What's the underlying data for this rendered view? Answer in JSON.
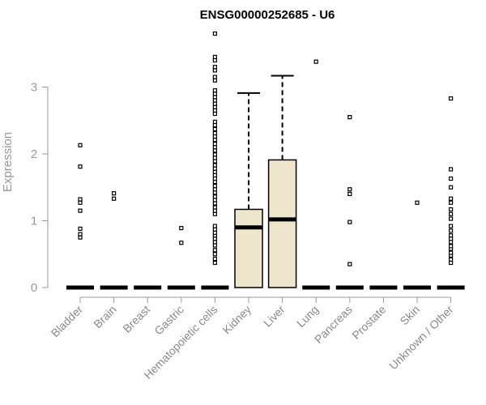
{
  "chart_data": {
    "type": "box",
    "title": "ENSG00000252685 - U6",
    "ylabel": "Expression",
    "xlabel": "",
    "ylim": [
      0,
      3.9
    ],
    "yticks": [
      0,
      1,
      2,
      3
    ],
    "grid": false,
    "legend": "none",
    "box_fill": "#ede6cc",
    "categories": [
      "Bladder",
      "Brain",
      "Breast",
      "Gastric",
      "Hematopoietic cells",
      "Kidney",
      "Liver",
      "Lung",
      "Pancreas",
      "Prostate",
      "Skin",
      "Unknown / Other"
    ],
    "boxes": [
      {
        "category": "Bladder",
        "q1": 0,
        "median": 0,
        "q3": 0,
        "whisker_high": 0,
        "outliers": [
          0.75,
          0.8,
          0.88,
          1.15,
          1.27,
          1.32,
          1.81,
          2.13
        ]
      },
      {
        "category": "Brain",
        "q1": 0,
        "median": 0,
        "q3": 0,
        "whisker_high": 0,
        "outliers": [
          1.33,
          1.41
        ]
      },
      {
        "category": "Breast",
        "q1": 0,
        "median": 0,
        "q3": 0,
        "whisker_high": 0,
        "outliers": []
      },
      {
        "category": "Gastric",
        "q1": 0,
        "median": 0,
        "q3": 0,
        "whisker_high": 0,
        "outliers": [
          0.67,
          0.89
        ]
      },
      {
        "category": "Hematopoietic cells",
        "q1": 0,
        "median": 0,
        "q3": 0,
        "whisker_high": 0,
        "outliers": [
          0.37,
          0.43,
          0.5,
          0.56,
          0.63,
          0.68,
          0.73,
          0.78,
          0.82,
          0.87,
          0.92,
          1.1,
          1.15,
          1.2,
          1.26,
          1.31,
          1.36,
          1.42,
          1.47,
          1.52,
          1.58,
          1.63,
          1.68,
          1.73,
          1.78,
          1.83,
          1.89,
          1.94,
          1.99,
          2.05,
          2.1,
          2.15,
          2.21,
          2.26,
          2.31,
          2.37,
          2.43,
          2.48,
          2.6,
          2.65,
          2.7,
          2.75,
          2.8,
          2.85,
          2.9,
          2.95,
          3.1,
          3.15,
          3.25,
          3.3,
          3.4,
          3.45,
          3.8
        ]
      },
      {
        "category": "Kidney",
        "q1": 0,
        "median": 0.9,
        "q3": 1.17,
        "whisker_high": 2.91,
        "outliers": []
      },
      {
        "category": "Liver",
        "q1": 0,
        "median": 1.02,
        "q3": 1.91,
        "whisker_high": 3.17,
        "outliers": []
      },
      {
        "category": "Lung",
        "q1": 0,
        "median": 0,
        "q3": 0,
        "whisker_high": 0,
        "outliers": [
          3.38
        ]
      },
      {
        "category": "Pancreas",
        "q1": 0,
        "median": 0,
        "q3": 0,
        "whisker_high": 0,
        "outliers": [
          0.35,
          0.98,
          1.4,
          1.47,
          2.55
        ]
      },
      {
        "category": "Prostate",
        "q1": 0,
        "median": 0,
        "q3": 0,
        "whisker_high": 0,
        "outliers": []
      },
      {
        "category": "Skin",
        "q1": 0,
        "median": 0,
        "q3": 0,
        "whisker_high": 0,
        "outliers": [
          1.27
        ]
      },
      {
        "category": "Unknown / Other",
        "q1": 0,
        "median": 0,
        "q3": 0,
        "whisker_high": 0,
        "outliers": [
          0.37,
          0.42,
          0.48,
          0.52,
          0.58,
          0.62,
          0.68,
          0.73,
          0.78,
          0.85,
          0.92,
          1.03,
          1.1,
          1.17,
          1.27,
          1.33,
          1.5,
          1.63,
          1.77,
          2.83
        ]
      }
    ]
  }
}
